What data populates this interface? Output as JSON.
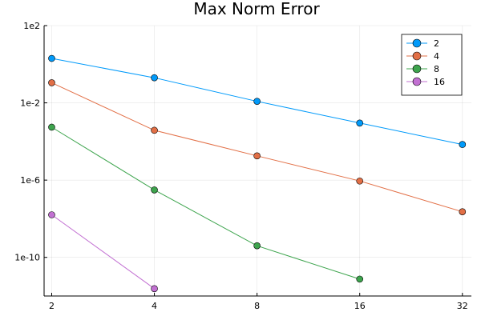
{
  "chart_data": {
    "type": "line",
    "title": "Max Norm Error",
    "xlabel": "",
    "ylabel": "",
    "x_scale": "log2",
    "y_scale": "log10",
    "x": [
      2,
      4,
      8,
      16,
      32
    ],
    "x_tick_labels": [
      "2",
      "4",
      "8",
      "16",
      "32"
    ],
    "y_ticks": [
      100.0,
      0.01,
      1e-06,
      1e-10
    ],
    "y_tick_labels": [
      "1e2",
      "1e-2",
      "1e-6",
      "1e-10"
    ],
    "xlim": [
      1.9,
      34
    ],
    "ylim": [
      100.0,
      1e-12
    ],
    "grid": true,
    "legend_position": "top-right",
    "series": [
      {
        "name": "2",
        "color": "#009AFA",
        "x": [
          2,
          4,
          8,
          16,
          32
        ],
        "values": [
          2,
          0.2,
          0.012,
          0.0009,
          7e-05
        ]
      },
      {
        "name": "4",
        "color": "#E26F46",
        "x": [
          2,
          4,
          8,
          16,
          32
        ],
        "values": [
          0.11,
          0.00038,
          1.8e-05,
          9e-07,
          2.3e-08
        ]
      },
      {
        "name": "8",
        "color": "#3DA44D",
        "x": [
          2,
          4,
          8,
          16
        ],
        "values": [
          0.00055,
          3.1e-07,
          4e-10,
          7.5e-12
        ]
      },
      {
        "name": "16",
        "color": "#C270D2",
        "x": [
          2,
          4
        ],
        "values": [
          1.6e-08,
          2.4e-12
        ]
      }
    ]
  }
}
